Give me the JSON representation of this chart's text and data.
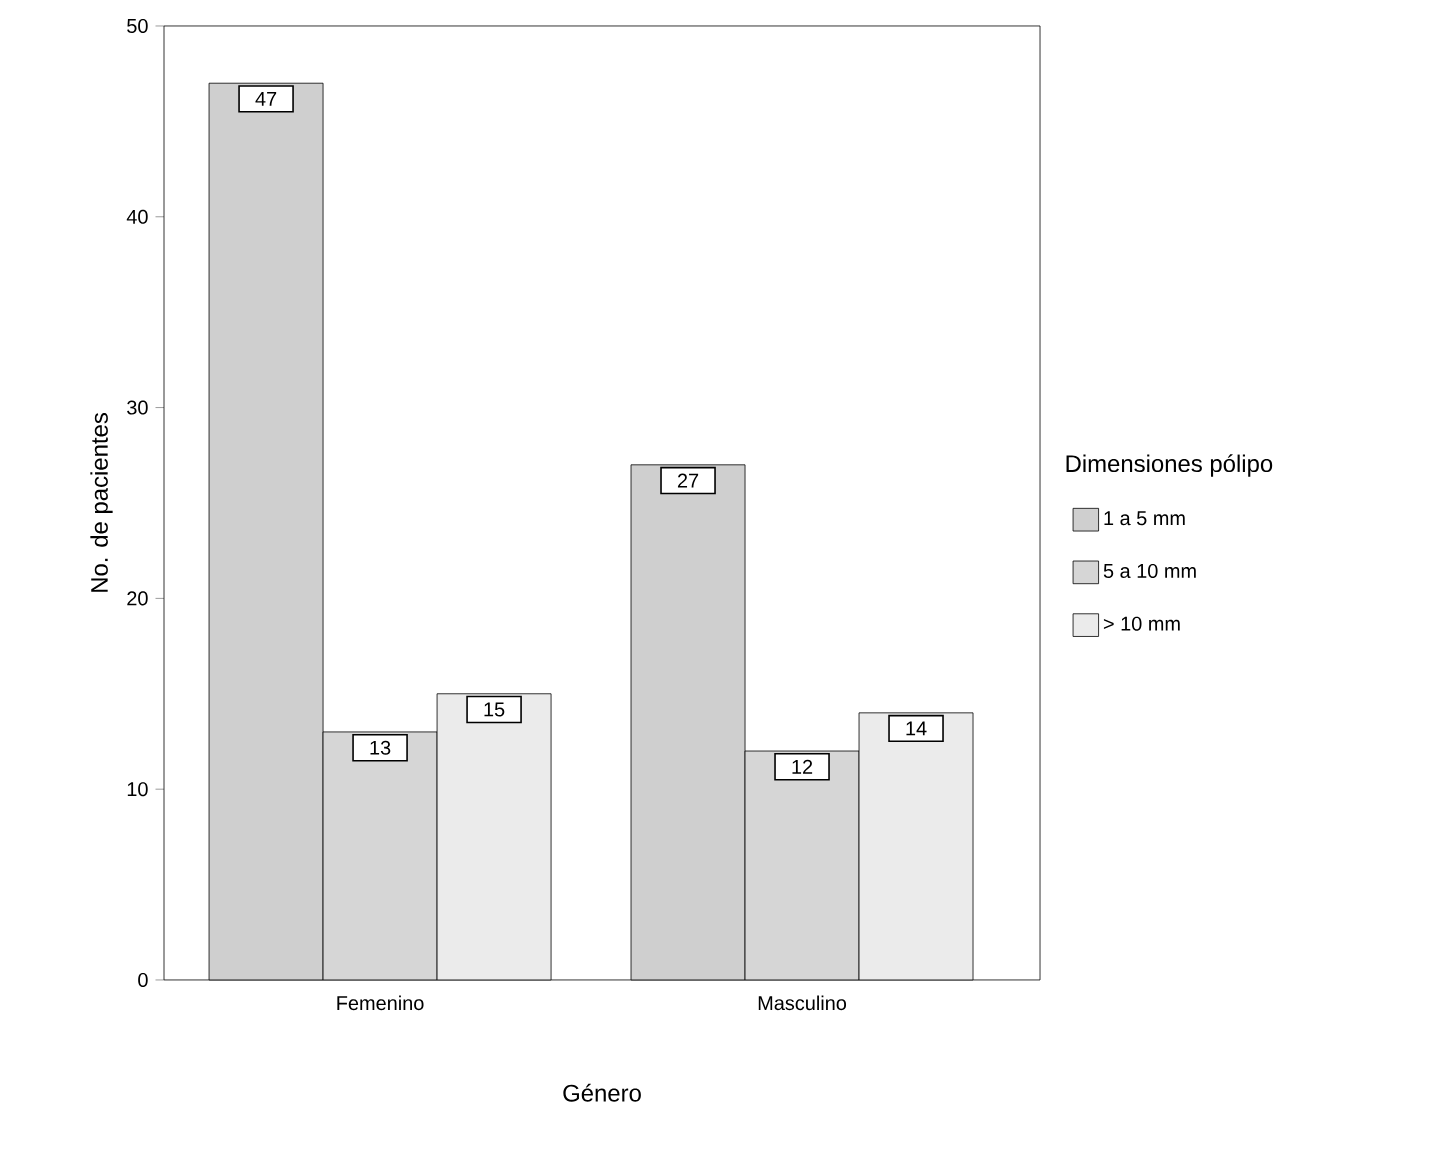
{
  "chart_data": {
    "type": "bar",
    "xlabel": "Género",
    "ylabel": "No. de pacientes",
    "legend_title": "Dimensiones pólipo",
    "categories": [
      "Femenino",
      "Masculino"
    ],
    "series": [
      {
        "name": "1 a 5 mm",
        "color": "#cfcfcf",
        "values": [
          47,
          27
        ]
      },
      {
        "name": "5 a 10 mm",
        "color": "#d6d6d6",
        "values": [
          13,
          12
        ]
      },
      {
        "name": "> 10 mm",
        "color": "#ebebeb",
        "values": [
          15,
          14
        ]
      }
    ],
    "ylim": [
      0,
      50
    ],
    "yticks": [
      0,
      10,
      20,
      30,
      40,
      50
    ],
    "data_labels": true,
    "legend": "right",
    "grid": false
  }
}
